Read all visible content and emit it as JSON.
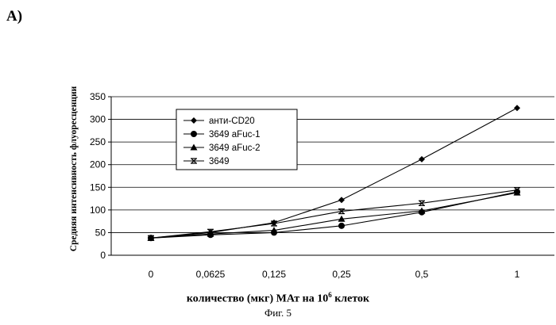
{
  "panel_label": "A)",
  "caption": "Фиг. 5",
  "xlabel": {
    "main": "количество (мкг) МАт на 10",
    "sup": "6",
    "tail": " клеток"
  },
  "chart_data": {
    "type": "line",
    "categories": [
      "0",
      "0,0625",
      "0,125",
      "0,25",
      "0,5",
      "1"
    ],
    "ylabel": "Средняя интенсивность флуоресценции",
    "ylim": [
      0,
      350
    ],
    "yticks": [
      0,
      50,
      100,
      150,
      200,
      250,
      300,
      350
    ],
    "grid": true,
    "legend_position": "top-left",
    "series": [
      {
        "name": "анти-CD20",
        "marker": "diamond",
        "values": [
          38,
          50,
          72,
          122,
          212,
          325
        ]
      },
      {
        "name": "3649 aFuc-1",
        "marker": "circle",
        "values": [
          38,
          45,
          50,
          65,
          95,
          140
        ]
      },
      {
        "name": "3649 aFuc-2",
        "marker": "triangle",
        "values": [
          38,
          47,
          55,
          80,
          98,
          138
        ]
      },
      {
        "name": "3649",
        "marker": "star",
        "values": [
          38,
          52,
          70,
          97,
          115,
          144
        ]
      }
    ]
  }
}
